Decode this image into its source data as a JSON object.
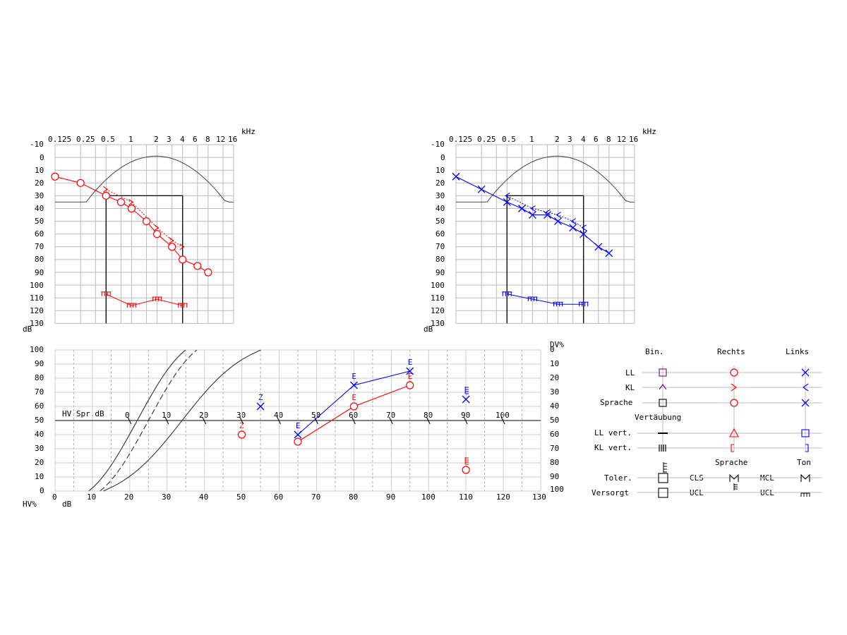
{
  "audiograms": [
    {
      "side": "right",
      "color": "#ff0000",
      "freq_unit": "kHz",
      "level_unit": "dB",
      "freq_labels": [
        "0.125",
        "0.25",
        "0.5",
        "1",
        "2",
        "3",
        "4",
        "6",
        "8",
        "12",
        "16"
      ],
      "db_labels": [
        "-10",
        "0",
        "10",
        "20",
        "30",
        "40",
        "50",
        "60",
        "70",
        "80",
        "90",
        "100",
        "110",
        "120",
        "130"
      ],
      "air": [
        [
          0.125,
          15
        ],
        [
          0.25,
          20
        ],
        [
          0.5,
          30
        ],
        [
          0.75,
          35
        ],
        [
          1,
          40
        ],
        [
          1.5,
          50
        ],
        [
          2,
          60
        ],
        [
          3,
          70
        ],
        [
          4,
          80
        ],
        [
          6,
          85
        ],
        [
          8,
          90
        ]
      ],
      "bone": [
        [
          0.5,
          25
        ],
        [
          1,
          35
        ],
        [
          2,
          55
        ],
        [
          3,
          65
        ],
        [
          4,
          70
        ]
      ],
      "ucl": [
        [
          0.5,
          107
        ],
        [
          1,
          116
        ],
        [
          2,
          111
        ],
        [
          4,
          116
        ]
      ]
    },
    {
      "side": "left",
      "color": "#0000ff",
      "freq_unit": "kHz",
      "level_unit": "dB",
      "freq_labels": [
        "0.125",
        "0.25",
        "0.5",
        "1",
        "2",
        "3",
        "4",
        "6",
        "8",
        "12",
        "16"
      ],
      "db_labels": [
        "-10",
        "0",
        "10",
        "20",
        "30",
        "40",
        "50",
        "60",
        "70",
        "80",
        "90",
        "100",
        "110",
        "120",
        "130"
      ],
      "air": [
        [
          0.125,
          15
        ],
        [
          0.25,
          25
        ],
        [
          0.5,
          35
        ],
        [
          0.75,
          40
        ],
        [
          1,
          45
        ],
        [
          1.5,
          45
        ],
        [
          2,
          50
        ],
        [
          3,
          55
        ],
        [
          4,
          60
        ],
        [
          6,
          70
        ],
        [
          8,
          75
        ]
      ],
      "bone": [
        [
          0.5,
          30
        ],
        [
          1,
          40
        ],
        [
          1.5,
          43
        ],
        [
          2,
          45
        ],
        [
          3,
          50
        ],
        [
          4,
          55
        ]
      ],
      "ucl": [
        [
          0.5,
          107
        ],
        [
          1,
          111
        ],
        [
          2,
          115
        ],
        [
          4,
          115
        ]
      ]
    }
  ],
  "speech": {
    "hv_label": "HV%",
    "db_label": "dB",
    "dv_label": "DV%",
    "hv_spr_label": "HV Spr.dB",
    "hv_ticks": [
      "0",
      "10",
      "20",
      "30",
      "40",
      "50",
      "60",
      "70",
      "80",
      "90",
      "100"
    ],
    "dv_ticks": [
      "100",
      "90",
      "80",
      "70",
      "60",
      "50",
      "40",
      "30",
      "20",
      "10",
      "0"
    ],
    "x_ticks": [
      "0",
      "10",
      "20",
      "30",
      "40",
      "50",
      "60",
      "70",
      "80",
      "90",
      "100",
      "110",
      "120",
      "130"
    ],
    "inner_ticks": [
      "0",
      "10",
      "20",
      "30",
      "40",
      "50",
      "60",
      "70",
      "80",
      "90",
      "100"
    ],
    "right_series": {
      "color": "#ff0000",
      "points": [
        [
          65,
          35
        ],
        [
          80,
          60
        ],
        [
          95,
          75
        ]
      ],
      "point_marks": [
        "",
        "E",
        "E"
      ],
      "z_point": [
        50,
        40
      ],
      "z_label": "Z",
      "aided_point": [
        110,
        15
      ]
    },
    "left_series": {
      "color": "#0000ff",
      "points": [
        [
          65,
          40
        ],
        [
          80,
          75
        ],
        [
          95,
          85
        ]
      ],
      "point_marks": [
        "E",
        "E",
        "E"
      ],
      "z_point": [
        55,
        60
      ],
      "z_label": "Z",
      "aided_point": [
        110,
        65
      ]
    }
  },
  "legend": {
    "headers": {
      "bin": "Bin.",
      "rechts": "Rechts",
      "links": "Links"
    },
    "rows": [
      {
        "label": "LL"
      },
      {
        "label": "KL"
      },
      {
        "label": "Sprache"
      }
    ],
    "vertaeubung_label": "Vertäubung",
    "vert_rows": [
      {
        "label": "LL vert."
      },
      {
        "label": "KL vert."
      }
    ],
    "sprache_header": "Sprache",
    "ton_header": "Ton",
    "toler_label": "Toler.",
    "versorgt_label": "Versorgt",
    "cls_label": "CLS",
    "mcl_label": "MCL",
    "ucl_label_1": "UCL",
    "ucl_label_2": "UCL",
    "colors": {
      "bin": "#800080",
      "right": "#ff0000",
      "left": "#0000ff"
    }
  }
}
